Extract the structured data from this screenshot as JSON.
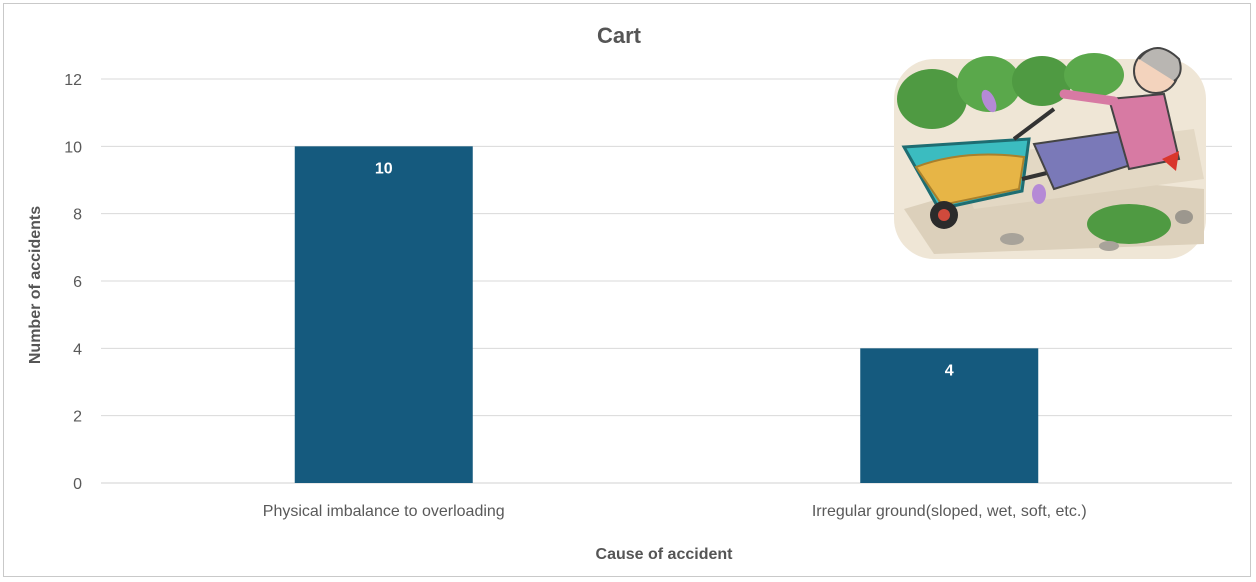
{
  "chart_data": {
    "type": "bar",
    "title": "Cart",
    "xlabel": "Cause of accident",
    "ylabel": "Number of accidents",
    "categories": [
      "Physical imbalance to overloading",
      "Irregular ground(sloped, wet, soft, etc.)"
    ],
    "values": [
      10,
      4
    ],
    "data_labels": [
      "10",
      "4"
    ],
    "yticks": [
      "0",
      "2",
      "4",
      "6",
      "8",
      "10",
      "12"
    ],
    "ylim": [
      0,
      12
    ],
    "grid": true,
    "legend": "none",
    "bar_color": "#155A7E"
  },
  "illustration": {
    "subject": "elderly woman falling beside an overturned wheelbarrow of gravel on a garden path",
    "icon": "fall-accident-illustration"
  }
}
